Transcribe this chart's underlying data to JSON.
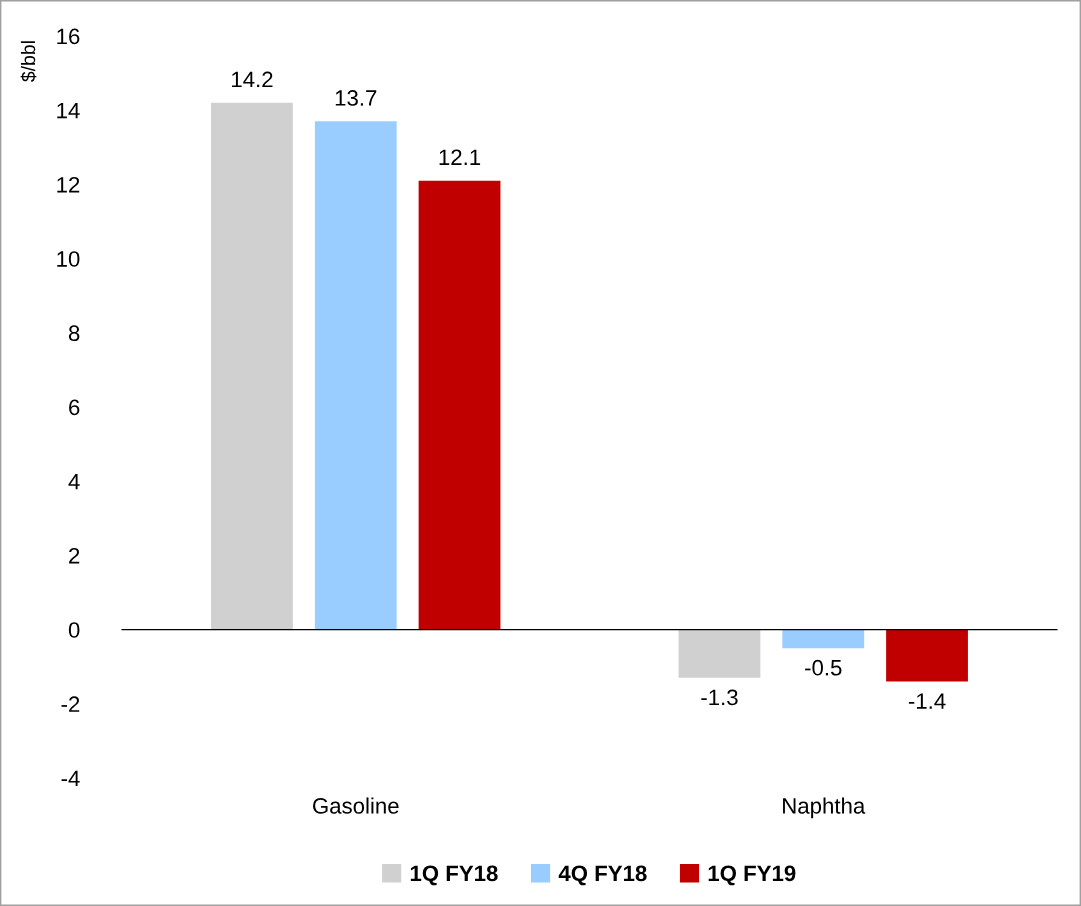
{
  "chart_data": {
    "type": "bar",
    "ylabel": "$/bbl",
    "categories": [
      "Gasoline",
      "Naphtha"
    ],
    "series": [
      {
        "name": "1Q FY18",
        "color": "#d0d0d0",
        "values": [
          14.2,
          -1.3
        ]
      },
      {
        "name": "4Q FY18",
        "color": "#99ccff",
        "values": [
          13.7,
          -0.5
        ]
      },
      {
        "name": "1Q FY19",
        "color": "#c00000",
        "values": [
          12.1,
          -1.4
        ]
      }
    ],
    "ylim": [
      -4,
      16
    ],
    "yticks": [
      -4,
      -2,
      0,
      2,
      4,
      6,
      8,
      10,
      12,
      14,
      16
    ],
    "data_labels": true,
    "legend": "bottom"
  }
}
